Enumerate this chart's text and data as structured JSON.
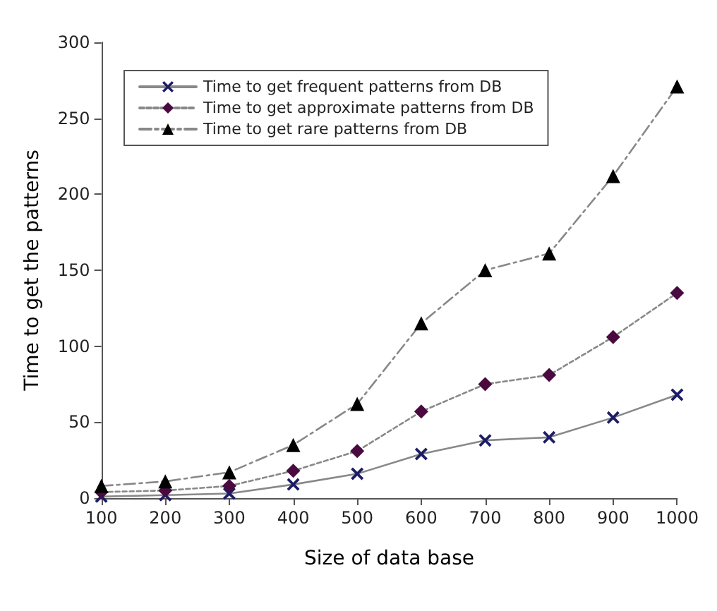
{
  "chart_data": {
    "type": "line",
    "xlabel": "Size of data base",
    "ylabel": "Time to get the patterns",
    "x": [
      100,
      200,
      300,
      400,
      500,
      600,
      700,
      800,
      900,
      1000
    ],
    "series": [
      {
        "name": "Time to get frequent patterns from DB",
        "color": "#1c1c66",
        "marker": "cross",
        "line_style": "solid",
        "values": [
          1,
          2,
          3,
          9,
          16,
          29,
          38,
          40,
          53,
          68
        ]
      },
      {
        "name": "Time to get approximate patterns from DB",
        "color": "#4a0a40",
        "marker": "diamond",
        "line_style": "dotted",
        "values": [
          4,
          5,
          8,
          18,
          31,
          57,
          75,
          81,
          106,
          135
        ]
      },
      {
        "name": "Time to get rare patterns from DB",
        "color": "#000000",
        "marker": "triangle",
        "line_style": "dashed",
        "values": [
          8,
          11,
          17,
          35,
          62,
          115,
          150,
          161,
          212,
          271
        ]
      }
    ],
    "xlim": [
      100,
      1000
    ],
    "xticks": [
      100,
      200,
      300,
      400,
      500,
      600,
      700,
      800,
      900,
      1000
    ],
    "ylim": [
      0,
      300
    ],
    "yticks": [
      0,
      50,
      100,
      150,
      200,
      250,
      300
    ],
    "grid": false,
    "legend": "top left"
  }
}
